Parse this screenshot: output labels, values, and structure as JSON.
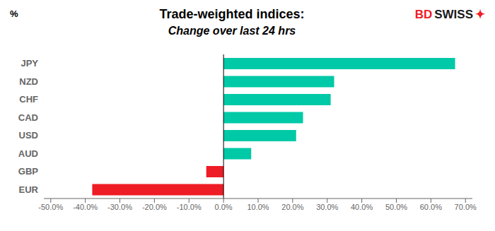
{
  "chart_data": {
    "type": "bar",
    "orientation": "horizontal",
    "title": "Trade-weighted indices:",
    "subtitle": "Change over last 24 hrs",
    "ylabel": "%",
    "categories": [
      "JPY",
      "NZD",
      "CHF",
      "CAD",
      "USD",
      "AUD",
      "GBP",
      "EUR"
    ],
    "values": [
      0.67,
      0.32,
      0.31,
      0.23,
      0.21,
      0.08,
      -0.05,
      -0.38
    ],
    "colors": [
      "#00C9A7",
      "#00C9A7",
      "#00C9A7",
      "#00C9A7",
      "#00C9A7",
      "#00C9A7",
      "#EE1C25",
      "#EE1C25"
    ],
    "xlim": [
      -0.52,
      0.72
    ],
    "xticks": [
      {
        "value": -0.5,
        "label": "-50.0%"
      },
      {
        "value": -0.4,
        "label": "-40.0%"
      },
      {
        "value": -0.3,
        "label": "-30.0%"
      },
      {
        "value": -0.2,
        "label": "-20.0%"
      },
      {
        "value": -0.1,
        "label": "-10.0%"
      },
      {
        "value": 0.0,
        "label": "0.0%"
      },
      {
        "value": 0.1,
        "label": "10.0%"
      },
      {
        "value": 0.2,
        "label": "20.0%"
      },
      {
        "value": 0.3,
        "label": "30.0%"
      },
      {
        "value": 0.4,
        "label": "40.0%"
      },
      {
        "value": 0.5,
        "label": "50.0%"
      },
      {
        "value": 0.6,
        "label": "60.0%"
      },
      {
        "value": 0.7,
        "label": "70.0%"
      }
    ],
    "grid": false,
    "annotations": [
      {
        "text": "BD",
        "color": "#EE1C25"
      },
      {
        "text": "SWISS",
        "color": "#1a1a1a"
      },
      {
        "text": "✦",
        "color": "#EE1C25"
      }
    ]
  }
}
